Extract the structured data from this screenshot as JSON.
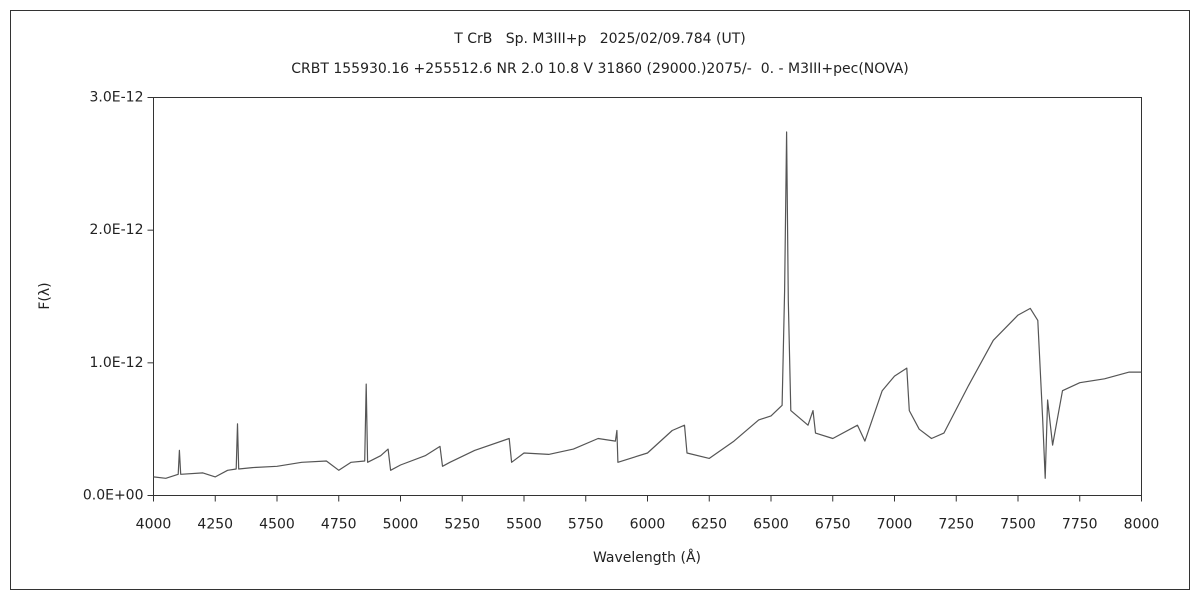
{
  "chart_data": {
    "type": "line",
    "title": "T CrB   Sp. M3III+p   2025/02/09.784 (UT)",
    "subtitle": "CRBT 155930.16 +255512.6 NR 2.0 10.8 V 31860 (29000.)2075/-  0. - M3III+pec(NOVA)",
    "x_label": "Wavelength (Å)",
    "y_label": "F(λ)",
    "color": "#555555",
    "x": [
      4000,
      4050,
      4100,
      4105,
      4110,
      4200,
      4250,
      4300,
      4335,
      4340,
      4345,
      4400,
      4500,
      4600,
      4700,
      4750,
      4800,
      4855,
      4861,
      4867,
      4920,
      4950,
      4960,
      5000,
      5100,
      5160,
      5170,
      5200,
      5300,
      5440,
      5450,
      5500,
      5600,
      5700,
      5800,
      5870,
      5876,
      5880,
      6000,
      6100,
      6150,
      6160,
      6250,
      6350,
      6450,
      6500,
      6545,
      6555,
      6563,
      6570,
      6580,
      6650,
      6670,
      6680,
      6750,
      6850,
      6880,
      6950,
      7000,
      7050,
      7060,
      7100,
      7150,
      7200,
      7300,
      7400,
      7500,
      7550,
      7580,
      7600,
      7610,
      7620,
      7640,
      7680,
      7750,
      7850,
      7950,
      8000
    ],
    "values": [
      1.4e-13,
      1.3e-13,
      1.6e-13,
      3.4e-13,
      1.6e-13,
      1.7e-13,
      1.4e-13,
      1.9e-13,
      2e-13,
      5.4e-13,
      2e-13,
      2.1e-13,
      2.2e-13,
      2.5e-13,
      2.6e-13,
      1.9e-13,
      2.5e-13,
      2.6e-13,
      8.4e-13,
      2.5e-13,
      3e-13,
      3.5e-13,
      1.9e-13,
      2.3e-13,
      3e-13,
      3.7e-13,
      2.2e-13,
      2.5e-13,
      3.4e-13,
      4.3e-13,
      2.5e-13,
      3.2e-13,
      3.1e-13,
      3.5e-13,
      4.3e-13,
      4.1e-13,
      4.9e-13,
      2.5e-13,
      3.2e-13,
      4.9e-13,
      5.3e-13,
      3.2e-13,
      2.8e-13,
      4.1e-13,
      5.7e-13,
      6e-13,
      6.8e-13,
      1.54e-12,
      2.74e-12,
      1.47e-12,
      6.4e-13,
      5.3e-13,
      6.4e-13,
      4.7e-13,
      4.3e-13,
      5.3e-13,
      4.1e-13,
      7.9e-13,
      9e-13,
      9.6e-13,
      6.4e-13,
      5e-13,
      4.3e-13,
      4.7e-13,
      8.3e-13,
      1.17e-12,
      1.36e-12,
      1.41e-12,
      1.32e-12,
      5.7e-13,
      1.3e-13,
      7.2e-13,
      3.8e-13,
      7.9e-13,
      8.5e-13,
      8.8e-13,
      9.3e-13,
      9.3e-13
    ],
    "xlim": [
      4000,
      8000
    ],
    "xticks": [
      4000,
      4250,
      4500,
      4750,
      5000,
      5250,
      5500,
      5750,
      6000,
      6250,
      6500,
      6750,
      7000,
      7250,
      7500,
      7750,
      8000
    ],
    "ylim": [
      0,
      3e-12
    ],
    "yticks": [
      {
        "value": 0,
        "label": "0.0E+00"
      },
      {
        "value": 1e-12,
        "label": "1.0E-12"
      },
      {
        "value": 2e-12,
        "label": "2.0E-12"
      },
      {
        "value": 3e-12,
        "label": "3.0E-12"
      }
    ]
  }
}
